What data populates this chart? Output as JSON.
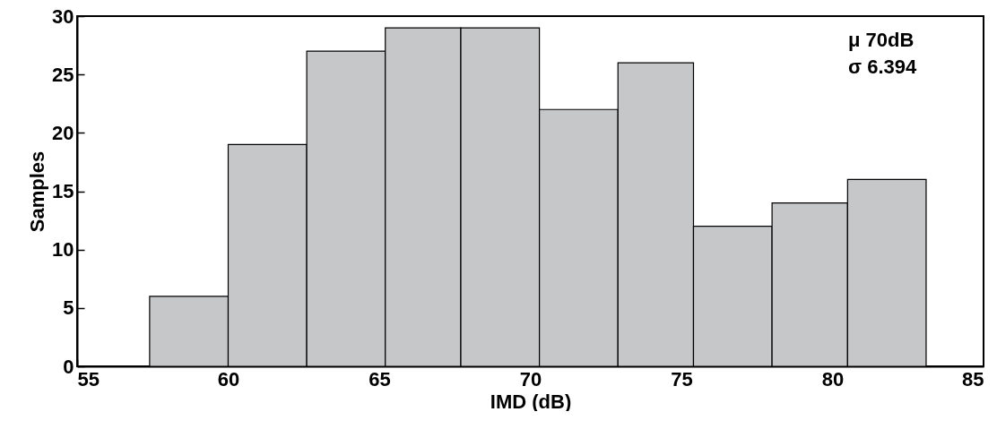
{
  "chart_data": {
    "type": "histogram",
    "xlabel": "IMD (dB)",
    "ylabel": "Samples",
    "bins": [
      57.4,
      60.0,
      62.6,
      65.2,
      67.7,
      70.3,
      72.9,
      75.4,
      78.0,
      80.5,
      83.1
    ],
    "values": [
      6,
      19,
      27,
      29,
      29,
      22,
      26,
      12,
      14,
      16
    ],
    "color": "#c6c7c9",
    "xlim": [
      55,
      85
    ],
    "xticks": [
      55,
      60,
      65,
      70,
      75,
      80,
      85
    ],
    "ylim": [
      0,
      30
    ],
    "yticks": [
      0,
      5,
      10,
      15,
      20,
      25,
      30
    ],
    "grid": false,
    "annotations": [
      "μ  70dB",
      "σ  6.394"
    ]
  }
}
